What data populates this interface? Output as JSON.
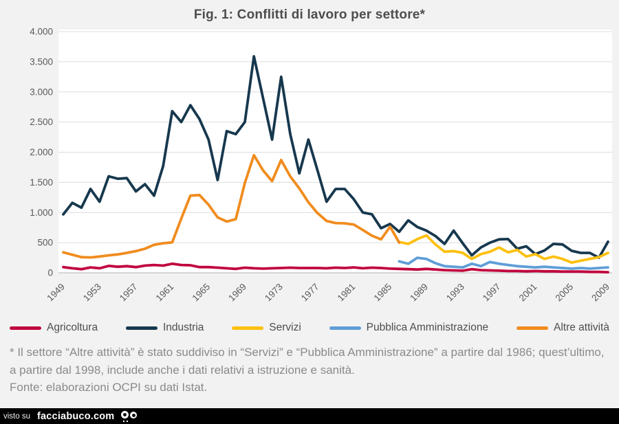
{
  "title": "Fig. 1: Conflitti di lavoro per settore*",
  "chart_data": {
    "type": "line",
    "x_start": 1949,
    "x_end": 2009,
    "ylim": [
      0,
      4000
    ],
    "grid": "horizontal",
    "legend_position": "bottom",
    "y_ticks": [
      {
        "value": 0,
        "label": "0"
      },
      {
        "value": 500,
        "label": "500"
      },
      {
        "value": 1000,
        "label": "1.000"
      },
      {
        "value": 1500,
        "label": "1.500"
      },
      {
        "value": 2000,
        "label": "2.000"
      },
      {
        "value": 2500,
        "label": "2.500"
      },
      {
        "value": 3000,
        "label": "3.000"
      },
      {
        "value": 3500,
        "label": "3.500"
      },
      {
        "value": 4000,
        "label": "4.000"
      }
    ],
    "x_ticks": [
      1949,
      1953,
      1957,
      1961,
      1965,
      1969,
      1973,
      1977,
      1981,
      1985,
      1989,
      1993,
      1997,
      2001,
      2005,
      2009
    ],
    "series": [
      {
        "name": "Agricoltura",
        "color": "#c1063f",
        "x_start": 1949,
        "values": [
          95,
          75,
          60,
          90,
          75,
          115,
          100,
          110,
          95,
          120,
          130,
          120,
          150,
          130,
          125,
          95,
          95,
          85,
          75,
          65,
          85,
          75,
          70,
          75,
          80,
          85,
          80,
          80,
          80,
          75,
          85,
          80,
          90,
          75,
          85,
          80,
          70,
          65,
          60,
          55,
          65,
          55,
          45,
          40,
          35,
          60,
          45,
          40,
          35,
          30,
          30,
          25,
          30,
          25,
          25,
          20,
          20,
          20,
          15,
          15,
          10
        ]
      },
      {
        "name": "Industria",
        "color": "#17384e",
        "x_start": 1949,
        "values": [
          970,
          1160,
          1080,
          1390,
          1180,
          1600,
          1560,
          1570,
          1350,
          1470,
          1280,
          1770,
          2680,
          2500,
          2780,
          2550,
          2210,
          1540,
          2350,
          2300,
          2500,
          3590,
          2900,
          2210,
          3250,
          2300,
          1650,
          2210,
          1700,
          1180,
          1390,
          1390,
          1220,
          1000,
          970,
          740,
          810,
          680,
          870,
          760,
          700,
          610,
          480,
          700,
          490,
          290,
          420,
          500,
          555,
          560,
          400,
          440,
          310,
          370,
          480,
          470,
          365,
          330,
          330,
          250,
          515
        ]
      },
      {
        "name": "Servizi",
        "color": "#fdc00f",
        "x_start": 1986,
        "values": [
          510,
          480,
          560,
          620,
          470,
          350,
          360,
          330,
          230,
          310,
          350,
          420,
          340,
          380,
          270,
          310,
          230,
          270,
          230,
          170,
          200,
          230,
          260,
          330
        ]
      },
      {
        "name": "Pubblica Amministrazione",
        "color": "#5f9ed7",
        "x_start": 1986,
        "values": [
          190,
          150,
          250,
          230,
          160,
          110,
          100,
          90,
          150,
          110,
          180,
          150,
          130,
          110,
          100,
          90,
          100,
          90,
          80,
          70,
          80,
          70,
          80,
          90
        ]
      },
      {
        "name": "Altre attività",
        "color": "#f08c1e",
        "x_start": 1949,
        "values": [
          340,
          300,
          260,
          255,
          270,
          290,
          305,
          330,
          360,
          400,
          465,
          490,
          505,
          900,
          1280,
          1290,
          1130,
          920,
          850,
          890,
          1490,
          1950,
          1700,
          1520,
          1870,
          1600,
          1400,
          1170,
          990,
          860,
          825,
          820,
          800,
          710,
          615,
          555,
          765,
          500
        ]
      }
    ]
  },
  "footnote": {
    "line1": "* Il settore “Altre attività” è stato suddiviso in “Servizi” e “Pubblica Amministrazione” a partire dal 1986; quest’ultimo, a partire dal 1998, include anche i dati relativi a istruzione e sanità.",
    "line2": "Fonte: elaborazioni OCPI su dati Istat."
  },
  "watermark": {
    "prefix": "visto su",
    "brand": "facciabuco.com",
    "logo": "googly-eyes-icon"
  }
}
